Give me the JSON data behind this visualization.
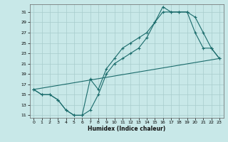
{
  "bg_color": "#c8e8e8",
  "grid_color": "#a8cccc",
  "line_color": "#1a6b6b",
  "xlabel": "Humidex (Indice chaleur)",
  "xlim_min": -0.5,
  "xlim_max": 23.5,
  "ylim_min": 10.5,
  "ylim_max": 32.5,
  "yticks": [
    11,
    13,
    15,
    17,
    19,
    21,
    23,
    25,
    27,
    29,
    31
  ],
  "xticks": [
    0,
    1,
    2,
    3,
    4,
    5,
    6,
    7,
    8,
    9,
    10,
    11,
    12,
    13,
    14,
    15,
    16,
    17,
    18,
    19,
    20,
    21,
    22,
    23
  ],
  "curve1_x": [
    0,
    1,
    2,
    3,
    4,
    5,
    6,
    7,
    8,
    9,
    10,
    11,
    12,
    13,
    14,
    15,
    16,
    17,
    18,
    19,
    20,
    21,
    22,
    23
  ],
  "curve1_y": [
    16,
    15,
    15,
    14,
    12,
    11,
    11,
    12,
    15,
    19,
    21,
    22,
    23,
    24,
    26,
    29,
    32,
    31,
    31,
    31,
    30,
    27,
    24,
    22
  ],
  "curve2_x": [
    0,
    1,
    2,
    3,
    4,
    5,
    6,
    7,
    8,
    9,
    10,
    11,
    12,
    13,
    14,
    15,
    16,
    17,
    18,
    19,
    20,
    21,
    22,
    23
  ],
  "curve2_y": [
    16,
    15,
    15,
    14,
    12,
    11,
    11,
    18,
    16,
    20,
    22,
    24,
    25,
    26,
    27,
    29,
    31,
    31,
    31,
    31,
    27,
    24,
    24,
    22
  ],
  "curve3_x": [
    0,
    23
  ],
  "curve3_y": [
    16,
    22
  ]
}
